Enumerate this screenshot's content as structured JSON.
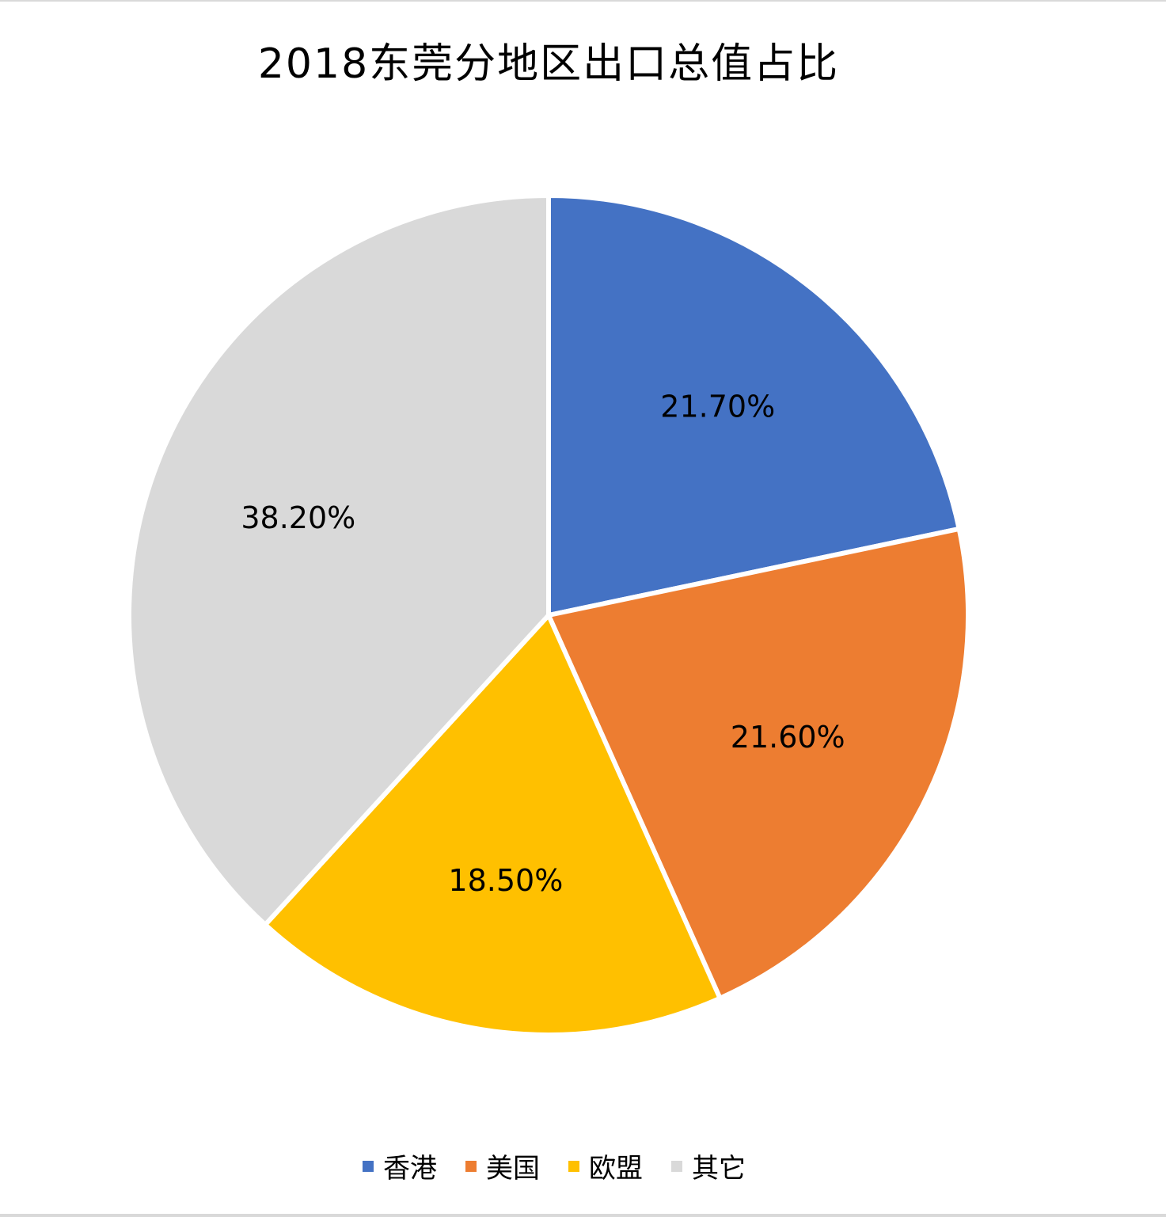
{
  "chart_data": {
    "type": "pie",
    "title": "2018东莞分地区出口总值占比",
    "categories": [
      "香港",
      "美国",
      "欧盟",
      "其它"
    ],
    "values": [
      21.7,
      21.6,
      18.5,
      38.2
    ],
    "data_labels": [
      "21.70%",
      "21.60%",
      "18.50%",
      "38.20%"
    ],
    "colors": [
      "#4472C4",
      "#ED7D31",
      "#FFC000",
      "#D9D9D9"
    ],
    "start_angle": "12 o'clock",
    "direction": "clockwise",
    "legend": "bottom"
  }
}
